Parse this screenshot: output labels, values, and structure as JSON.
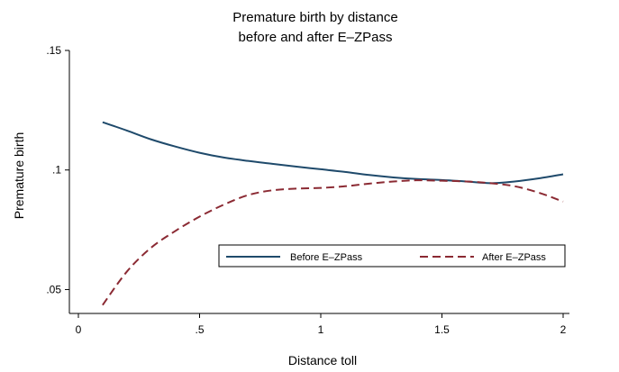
{
  "chart_data": {
    "type": "line",
    "title_lines": [
      "Premature birth by distance",
      "before and after E–ZPass"
    ],
    "xlabel": "Distance toll",
    "ylabel": "Premature birth",
    "xlim": [
      0,
      2
    ],
    "ylim": [
      0.04,
      0.15
    ],
    "x_ticks": [
      0,
      0.5,
      1,
      1.5,
      2
    ],
    "x_tick_labels": [
      "0",
      ".5",
      "1",
      "1.5",
      "2"
    ],
    "y_ticks": [
      0.05,
      0.1,
      0.15
    ],
    "y_tick_labels": [
      ".05",
      ".1",
      ".15"
    ],
    "grid": false,
    "legend_position": "inside-right",
    "series": [
      {
        "name": "Before E–ZPass",
        "color": "#1f4a6b",
        "style": "solid",
        "x": [
          0.1,
          0.2,
          0.3,
          0.4,
          0.5,
          0.6,
          0.7,
          0.8,
          0.9,
          1.0,
          1.1,
          1.2,
          1.3,
          1.4,
          1.5,
          1.6,
          1.7,
          1.8,
          1.9,
          2.0
        ],
        "y": [
          0.12,
          0.1165,
          0.1128,
          0.1098,
          0.1072,
          0.1052,
          0.1038,
          0.1026,
          0.1014,
          0.1003,
          0.0992,
          0.0979,
          0.0969,
          0.0962,
          0.0958,
          0.0952,
          0.0945,
          0.0952,
          0.0965,
          0.0982
        ]
      },
      {
        "name": "After E–ZPass",
        "color": "#8b2a33",
        "style": "dashed",
        "x": [
          0.1,
          0.2,
          0.3,
          0.4,
          0.5,
          0.6,
          0.7,
          0.8,
          0.9,
          1.0,
          1.1,
          1.2,
          1.3,
          1.4,
          1.5,
          1.6,
          1.7,
          1.8,
          1.9,
          2.0
        ],
        "y": [
          0.0435,
          0.0575,
          0.0675,
          0.0745,
          0.0805,
          0.0855,
          0.0895,
          0.0915,
          0.0922,
          0.0925,
          0.0932,
          0.0943,
          0.0952,
          0.0957,
          0.0955,
          0.0952,
          0.0945,
          0.0932,
          0.0905,
          0.0868
        ]
      }
    ]
  }
}
